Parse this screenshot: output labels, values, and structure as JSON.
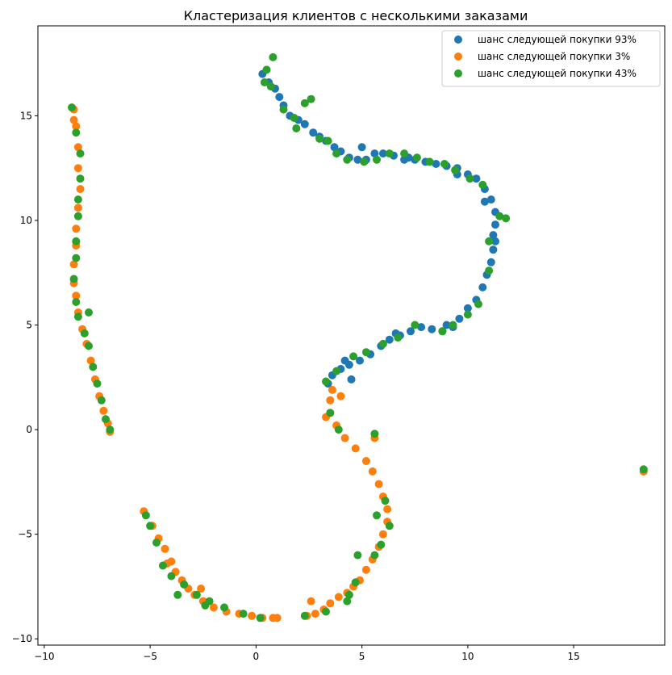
{
  "chart_data": {
    "type": "scatter",
    "title": "Кластеризация клиентов с несколькими заказами",
    "xlabel": "",
    "ylabel": "",
    "xlim": [
      -10.3,
      19.3
    ],
    "ylim": [
      -10.3,
      19.3
    ],
    "grid": false,
    "legend_position": "top-right",
    "x_ticks": [
      -10,
      -5,
      0,
      5,
      10,
      15
    ],
    "y_ticks": [
      -10,
      -5,
      0,
      5,
      10,
      15
    ],
    "series": [
      {
        "name": "шанс следующей покупки 93%",
        "color": "#1f77b4",
        "points": [
          [
            0.3,
            17.0
          ],
          [
            0.6,
            16.6
          ],
          [
            0.9,
            16.3
          ],
          [
            1.1,
            15.9
          ],
          [
            1.3,
            15.5
          ],
          [
            1.6,
            15.0
          ],
          [
            2.0,
            14.8
          ],
          [
            2.3,
            14.6
          ],
          [
            2.7,
            14.2
          ],
          [
            3.0,
            14.0
          ],
          [
            3.3,
            13.8
          ],
          [
            3.7,
            13.5
          ],
          [
            4.0,
            13.3
          ],
          [
            4.4,
            13.0
          ],
          [
            4.8,
            12.9
          ],
          [
            5.2,
            12.9
          ],
          [
            5.6,
            13.2
          ],
          [
            6.0,
            13.2
          ],
          [
            6.5,
            13.1
          ],
          [
            7.0,
            12.9
          ],
          [
            7.5,
            12.9
          ],
          [
            8.0,
            12.8
          ],
          [
            8.5,
            12.7
          ],
          [
            9.0,
            12.6
          ],
          [
            9.5,
            12.5
          ],
          [
            10.0,
            12.2
          ],
          [
            10.4,
            12.0
          ],
          [
            10.8,
            11.5
          ],
          [
            11.1,
            11.0
          ],
          [
            11.3,
            10.4
          ],
          [
            11.3,
            9.8
          ],
          [
            11.2,
            9.3
          ],
          [
            11.2,
            8.6
          ],
          [
            11.1,
            8.0
          ],
          [
            10.9,
            7.4
          ],
          [
            10.7,
            6.8
          ],
          [
            10.4,
            6.2
          ],
          [
            10.0,
            5.8
          ],
          [
            9.6,
            5.3
          ],
          [
            9.3,
            4.9
          ],
          [
            8.8,
            4.7
          ],
          [
            8.3,
            4.8
          ],
          [
            7.8,
            4.9
          ],
          [
            7.3,
            4.7
          ],
          [
            6.8,
            4.5
          ],
          [
            6.3,
            4.3
          ],
          [
            5.9,
            4.0
          ],
          [
            5.4,
            3.6
          ],
          [
            4.9,
            3.3
          ],
          [
            4.4,
            3.1
          ],
          [
            4.0,
            2.9
          ],
          [
            3.6,
            2.6
          ],
          [
            3.4,
            2.2
          ],
          [
            4.5,
            2.4
          ],
          [
            4.2,
            3.3
          ],
          [
            9.5,
            12.2
          ],
          [
            10.8,
            10.9
          ],
          [
            11.3,
            9.0
          ],
          [
            5.0,
            13.5
          ],
          [
            7.2,
            13.0
          ],
          [
            9.0,
            5.0
          ],
          [
            6.6,
            4.6
          ],
          [
            18.3,
            -2.0
          ]
        ]
      },
      {
        "name": "шанс следующей покупки 3%",
        "color": "#ff7f0e",
        "points": [
          [
            -8.6,
            15.3
          ],
          [
            -8.5,
            14.5
          ],
          [
            -8.4,
            13.5
          ],
          [
            -8.4,
            12.5
          ],
          [
            -8.3,
            11.5
          ],
          [
            -8.4,
            10.6
          ],
          [
            -8.5,
            9.6
          ],
          [
            -8.5,
            8.8
          ],
          [
            -8.6,
            7.9
          ],
          [
            -8.6,
            7.0
          ],
          [
            -8.5,
            6.4
          ],
          [
            -8.4,
            5.6
          ],
          [
            -8.2,
            4.8
          ],
          [
            -8.0,
            4.1
          ],
          [
            -7.8,
            3.3
          ],
          [
            -7.6,
            2.4
          ],
          [
            -7.4,
            1.6
          ],
          [
            -7.2,
            0.9
          ],
          [
            -7.0,
            0.3
          ],
          [
            -6.9,
            -0.1
          ],
          [
            -5.3,
            -3.9
          ],
          [
            -4.9,
            -4.6
          ],
          [
            -4.6,
            -5.2
          ],
          [
            -4.3,
            -5.7
          ],
          [
            -4.0,
            -6.3
          ],
          [
            -3.8,
            -6.8
          ],
          [
            -3.5,
            -7.2
          ],
          [
            -3.2,
            -7.6
          ],
          [
            -2.9,
            -7.9
          ],
          [
            -2.5,
            -8.2
          ],
          [
            -2.0,
            -8.5
          ],
          [
            -1.4,
            -8.7
          ],
          [
            -0.8,
            -8.8
          ],
          [
            -0.2,
            -8.9
          ],
          [
            0.3,
            -9.0
          ],
          [
            0.8,
            -9.0
          ],
          [
            1.0,
            -9.0
          ],
          [
            2.4,
            -8.9
          ],
          [
            2.8,
            -8.8
          ],
          [
            3.2,
            -8.6
          ],
          [
            3.5,
            -8.3
          ],
          [
            3.9,
            -8.0
          ],
          [
            4.3,
            -7.8
          ],
          [
            4.6,
            -7.5
          ],
          [
            4.9,
            -7.2
          ],
          [
            5.2,
            -6.7
          ],
          [
            5.5,
            -6.2
          ],
          [
            5.8,
            -5.6
          ],
          [
            6.0,
            -5.0
          ],
          [
            6.2,
            -4.4
          ],
          [
            6.2,
            -3.8
          ],
          [
            6.0,
            -3.2
          ],
          [
            5.8,
            -2.6
          ],
          [
            5.5,
            -2.0
          ],
          [
            5.2,
            -1.5
          ],
          [
            4.7,
            -0.9
          ],
          [
            4.2,
            -0.4
          ],
          [
            3.8,
            0.2
          ],
          [
            3.5,
            0.8
          ],
          [
            3.5,
            1.4
          ],
          [
            3.6,
            1.9
          ],
          [
            4.0,
            1.6
          ],
          [
            3.3,
            0.6
          ],
          [
            -2.6,
            -7.6
          ],
          [
            -4.2,
            -6.4
          ],
          [
            2.6,
            -8.2
          ],
          [
            -8.6,
            14.8
          ],
          [
            5.6,
            -0.4
          ],
          [
            18.3,
            -2.0
          ]
        ]
      },
      {
        "name": "шанс следующей покупки 43%",
        "color": "#2ca02c",
        "points": [
          [
            0.8,
            17.8
          ],
          [
            0.5,
            17.2
          ],
          [
            0.4,
            16.6
          ],
          [
            0.7,
            16.4
          ],
          [
            1.3,
            15.3
          ],
          [
            1.8,
            14.9
          ],
          [
            2.3,
            15.6
          ],
          [
            2.6,
            15.8
          ],
          [
            3.4,
            13.8
          ],
          [
            3.8,
            13.2
          ],
          [
            4.3,
            12.9
          ],
          [
            5.1,
            12.8
          ],
          [
            5.7,
            12.9
          ],
          [
            6.3,
            13.2
          ],
          [
            7.0,
            13.2
          ],
          [
            7.6,
            13.0
          ],
          [
            8.2,
            12.8
          ],
          [
            8.9,
            12.7
          ],
          [
            9.4,
            12.4
          ],
          [
            10.1,
            12.0
          ],
          [
            10.7,
            11.7
          ],
          [
            11.5,
            10.2
          ],
          [
            11.0,
            9.0
          ],
          [
            11.0,
            7.6
          ],
          [
            10.5,
            6.0
          ],
          [
            10.0,
            5.5
          ],
          [
            9.3,
            5.0
          ],
          [
            8.8,
            4.7
          ],
          [
            7.5,
            5.0
          ],
          [
            6.7,
            4.4
          ],
          [
            6.0,
            4.1
          ],
          [
            5.2,
            3.7
          ],
          [
            4.6,
            3.5
          ],
          [
            3.8,
            2.8
          ],
          [
            3.3,
            2.3
          ],
          [
            3.5,
            0.8
          ],
          [
            3.9,
            0.0
          ],
          [
            5.6,
            -0.2
          ],
          [
            6.1,
            -3.4
          ],
          [
            5.7,
            -4.1
          ],
          [
            6.3,
            -4.6
          ],
          [
            5.9,
            -5.5
          ],
          [
            5.6,
            -6.0
          ],
          [
            4.8,
            -6.0
          ],
          [
            4.7,
            -7.3
          ],
          [
            4.4,
            -7.9
          ],
          [
            4.3,
            -8.2
          ],
          [
            3.3,
            -8.7
          ],
          [
            2.3,
            -8.9
          ],
          [
            0.2,
            -9.0
          ],
          [
            -0.6,
            -8.8
          ],
          [
            -1.5,
            -8.5
          ],
          [
            -2.4,
            -8.4
          ],
          [
            -2.8,
            -7.9
          ],
          [
            -3.4,
            -7.4
          ],
          [
            -4.0,
            -7.0
          ],
          [
            -4.4,
            -6.5
          ],
          [
            -4.7,
            -5.4
          ],
          [
            -5.2,
            -4.1
          ],
          [
            -5.0,
            -4.6
          ],
          [
            -3.7,
            -7.9
          ],
          [
            -2.2,
            -8.2
          ],
          [
            -8.7,
            15.4
          ],
          [
            -8.5,
            14.2
          ],
          [
            -8.3,
            13.2
          ],
          [
            -8.3,
            12.0
          ],
          [
            -8.4,
            11.0
          ],
          [
            -8.4,
            10.2
          ],
          [
            -8.5,
            9.0
          ],
          [
            -8.5,
            8.2
          ],
          [
            -8.6,
            7.2
          ],
          [
            -8.5,
            6.1
          ],
          [
            -8.4,
            5.4
          ],
          [
            -7.9,
            5.6
          ],
          [
            -8.1,
            4.6
          ],
          [
            -7.9,
            4.0
          ],
          [
            -7.7,
            3.0
          ],
          [
            -7.5,
            2.2
          ],
          [
            -7.3,
            1.4
          ],
          [
            -7.1,
            0.5
          ],
          [
            -6.9,
            0.0
          ],
          [
            18.3,
            -1.9
          ],
          [
            11.8,
            10.1
          ],
          [
            3.0,
            13.9
          ],
          [
            1.9,
            14.4
          ]
        ]
      }
    ]
  }
}
